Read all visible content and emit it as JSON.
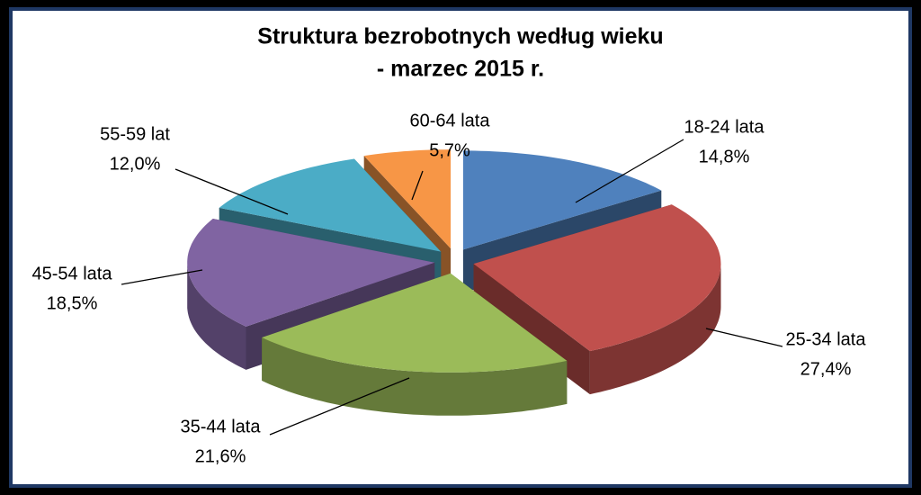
{
  "chart_data": {
    "type": "pie3d",
    "title": "Struktura bezrobotnych według wieku",
    "subtitle": "- marzec  2015 r.",
    "categories": [
      "18-24 lata",
      "25-34 lata",
      "35-44 lata",
      "45-54 lata",
      "55-59 lat",
      "60-64 lata"
    ],
    "values": [
      14.8,
      27.4,
      21.6,
      18.5,
      12.0,
      5.7
    ],
    "value_labels": [
      "14,8%",
      "27,4%",
      "21,6%",
      "18,5%",
      "12,0%",
      "5,7%"
    ],
    "colors": [
      "#4f81bd",
      "#c0504d",
      "#9bbb59",
      "#8064a2",
      "#4bacc6",
      "#f79646"
    ]
  }
}
